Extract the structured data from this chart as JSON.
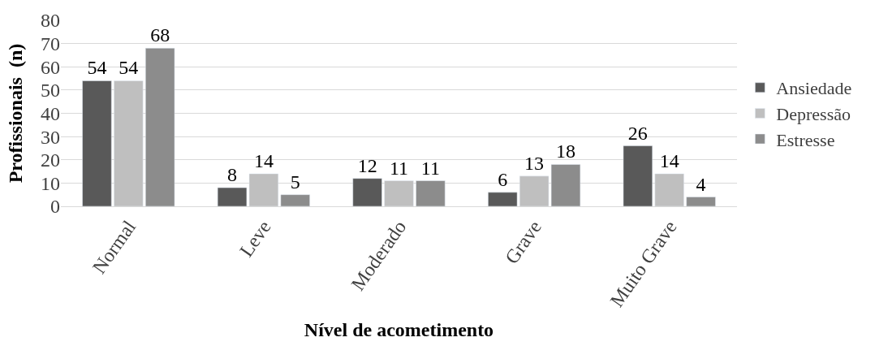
{
  "chart_data": {
    "type": "bar",
    "xlabel": "Nível de acometimento",
    "ylabel": "Profissionais  (n)",
    "categories": [
      "Normal",
      "Leve",
      "Moderado",
      "Grave",
      "Muito Grave"
    ],
    "series": [
      {
        "name": "Ansiedade",
        "color": "#595959",
        "values": [
          54,
          8,
          12,
          6,
          26
        ]
      },
      {
        "name": "Depressão",
        "color": "#bfbfbf",
        "values": [
          54,
          14,
          11,
          13,
          14
        ]
      },
      {
        "name": "Estresse",
        "color": "#8c8c8c",
        "values": [
          68,
          5,
          11,
          18,
          4
        ]
      }
    ],
    "ylim": [
      0,
      80
    ],
    "yticks": [
      0,
      10,
      20,
      30,
      40,
      50,
      60,
      70,
      80
    ],
    "grid": "y",
    "legend": "right",
    "data_labels": true
  }
}
